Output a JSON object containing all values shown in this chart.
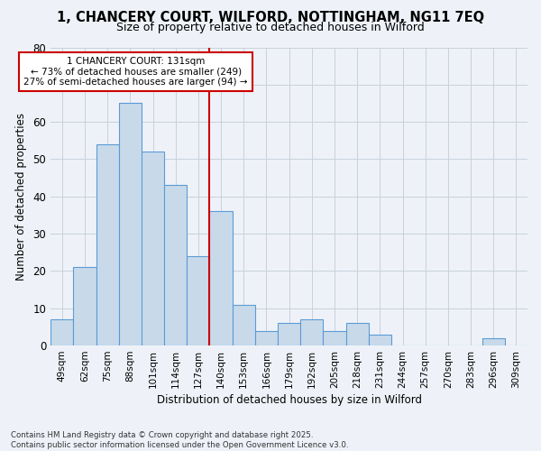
{
  "title_line1": "1, CHANCERY COURT, WILFORD, NOTTINGHAM, NG11 7EQ",
  "title_line2": "Size of property relative to detached houses in Wilford",
  "xlabel": "Distribution of detached houses by size in Wilford",
  "ylabel": "Number of detached properties",
  "bar_labels": [
    "49sqm",
    "62sqm",
    "75sqm",
    "88sqm",
    "101sqm",
    "114sqm",
    "127sqm",
    "140sqm",
    "153sqm",
    "166sqm",
    "179sqm",
    "192sqm",
    "205sqm",
    "218sqm",
    "231sqm",
    "244sqm",
    "257sqm",
    "270sqm",
    "283sqm",
    "296sqm",
    "309sqm"
  ],
  "bar_values": [
    7,
    21,
    54,
    65,
    52,
    43,
    24,
    36,
    11,
    4,
    6,
    7,
    4,
    6,
    3,
    0,
    0,
    0,
    0,
    2,
    0
  ],
  "bar_color": "#c8daea",
  "bar_edge_color": "#5b9bd5",
  "vline_index": 7,
  "annotation_line1": "1 CHANCERY COURT: 131sqm",
  "annotation_line2": "← 73% of detached houses are smaller (249)",
  "annotation_line3": "27% of semi-detached houses are larger (94) →",
  "annotation_box_color": "#ffffff",
  "annotation_box_edge_color": "#cc0000",
  "vline_color": "#cc0000",
  "grid_color": "#c8d0dc",
  "background_color": "#eef2f8",
  "ylim": [
    0,
    80
  ],
  "yticks": [
    0,
    10,
    20,
    30,
    40,
    50,
    60,
    70,
    80
  ],
  "footnote": "Contains HM Land Registry data © Crown copyright and database right 2025.\nContains public sector information licensed under the Open Government Licence v3.0."
}
